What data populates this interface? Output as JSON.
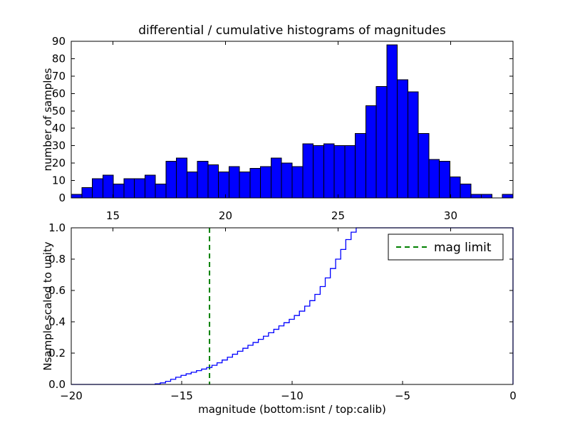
{
  "figure": {
    "title": "differential / cumulative histograms of magnitudes",
    "background": "#ffffff"
  },
  "legend": {
    "label": "mag limit"
  },
  "colors": {
    "bar_fill": "#0000ff",
    "bar_edge": "#000000",
    "cumulative_line": "#0000ff",
    "mag_limit_line": "#008000",
    "axes": "#000000"
  },
  "chart_data": [
    {
      "type": "bar",
      "role": "differential-histogram",
      "ylabel": "number of samples",
      "xlim": [
        13.15,
        32.77
      ],
      "ylim": [
        0,
        90
      ],
      "xticks": [
        15,
        20,
        25,
        30
      ],
      "yticks": [
        0,
        10,
        20,
        30,
        40,
        50,
        60,
        70,
        80,
        90
      ],
      "bin_start": 13.15,
      "bin_width": 0.467,
      "values": [
        2,
        6,
        11,
        13,
        8,
        11,
        11,
        13,
        8,
        21,
        23,
        15,
        21,
        19,
        15,
        18,
        15,
        17,
        18,
        23,
        20,
        18,
        31,
        30,
        31,
        30,
        30,
        37,
        53,
        64,
        88,
        68,
        61,
        37,
        22,
        21,
        12,
        8,
        2,
        2,
        0,
        2
      ],
      "grid": false,
      "legend_position": "none"
    },
    {
      "type": "line",
      "role": "cumulative-histogram",
      "style": "steps",
      "xlabel": "magnitude (bottom:isnt / top:calib)",
      "ylabel": "Nsample scaled to unity",
      "xlim": [
        -20,
        0
      ],
      "ylim": [
        0.0,
        1.0
      ],
      "xticks": [
        -20,
        -15,
        -10,
        -5,
        0
      ],
      "yticks": [
        0.0,
        0.2,
        0.4,
        0.6,
        0.8,
        1.0
      ],
      "top_axis_ticks": [
        15,
        20,
        25,
        30
      ],
      "mag_limit": -13.74,
      "steps": [
        [
          -16.2,
          0.004
        ],
        [
          -15.97,
          0.01
        ],
        [
          -15.73,
          0.02
        ],
        [
          -15.5,
          0.033
        ],
        [
          -15.27,
          0.046
        ],
        [
          -15.03,
          0.058
        ],
        [
          -14.8,
          0.068
        ],
        [
          -14.57,
          0.078
        ],
        [
          -14.33,
          0.088
        ],
        [
          -14.1,
          0.098
        ],
        [
          -13.87,
          0.108
        ],
        [
          -13.63,
          0.122
        ],
        [
          -13.4,
          0.138
        ],
        [
          -13.17,
          0.156
        ],
        [
          -12.93,
          0.174
        ],
        [
          -12.7,
          0.193
        ],
        [
          -12.47,
          0.212
        ],
        [
          -12.23,
          0.231
        ],
        [
          -12.0,
          0.25
        ],
        [
          -11.77,
          0.268
        ],
        [
          -11.53,
          0.288
        ],
        [
          -11.3,
          0.308
        ],
        [
          -11.07,
          0.33
        ],
        [
          -10.83,
          0.352
        ],
        [
          -10.6,
          0.374
        ],
        [
          -10.37,
          0.394
        ],
        [
          -10.13,
          0.416
        ],
        [
          -9.9,
          0.44
        ],
        [
          -9.67,
          0.468
        ],
        [
          -9.43,
          0.5
        ],
        [
          -9.2,
          0.535
        ],
        [
          -8.97,
          0.575
        ],
        [
          -8.73,
          0.625
        ],
        [
          -8.5,
          0.68
        ],
        [
          -8.27,
          0.74
        ],
        [
          -8.03,
          0.8
        ],
        [
          -7.8,
          0.862
        ],
        [
          -7.57,
          0.925
        ],
        [
          -7.33,
          0.972
        ],
        [
          -7.1,
          1.0
        ]
      ],
      "grid": false,
      "legend_position": "upper right"
    }
  ]
}
